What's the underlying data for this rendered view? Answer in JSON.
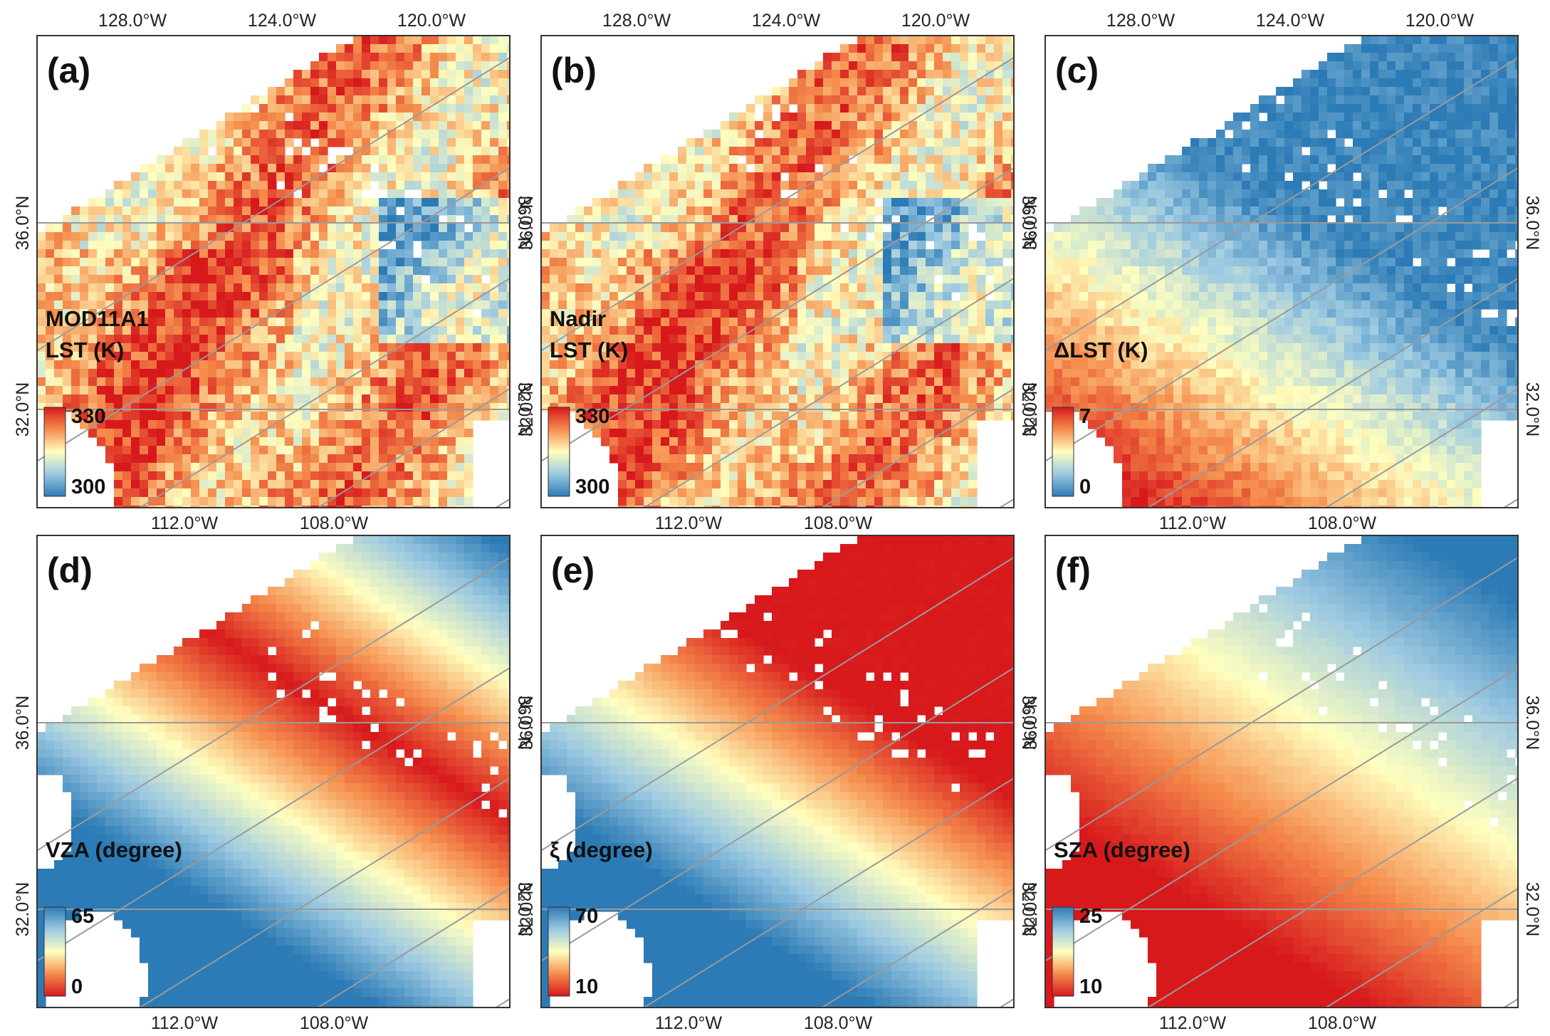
{
  "figure": {
    "top_lon_labels": [
      "128.0°W",
      "124.0°W",
      "120.0°W"
    ],
    "bottom_lon_labels": [
      "112.0°W",
      "108.0°W"
    ],
    "lat_labels": [
      "36.0°N",
      "32.0°N"
    ]
  },
  "colors": {
    "red": "#d7191c",
    "orange": "#f58d4d",
    "yellow": "#ffffbf",
    "lightblue": "#9cc9e1",
    "blue": "#2c7bb6",
    "grid": "#9a9a9a"
  },
  "panels": [
    {
      "id": "a",
      "tag": "(a)",
      "title_lines": [
        "MOD11A1",
        "LST (K)"
      ],
      "cb_top": "330",
      "cb_bottom": "300",
      "cb_top_color": "red",
      "pattern": "lst"
    },
    {
      "id": "b",
      "tag": "(b)",
      "title_lines": [
        "Nadir",
        "LST (K)"
      ],
      "cb_top": "330",
      "cb_bottom": "300",
      "cb_top_color": "red",
      "pattern": "lst"
    },
    {
      "id": "c",
      "tag": "(c)",
      "title_lines": [
        "ΔLST (K)"
      ],
      "cb_top": "7",
      "cb_bottom": "0",
      "cb_top_color": "red",
      "pattern": "dlst"
    },
    {
      "id": "d",
      "tag": "(d)",
      "title_lines": [
        "VZA (degree)"
      ],
      "cb_top": "65",
      "cb_bottom": "0",
      "cb_top_color": "blue",
      "pattern": "vza"
    },
    {
      "id": "e",
      "tag": "(e)",
      "title_lines": [
        "ξ (degree)"
      ],
      "cb_top": "70",
      "cb_bottom": "10",
      "cb_top_color": "blue",
      "pattern": "xi"
    },
    {
      "id": "f",
      "tag": "(f)",
      "title_lines": [
        "SZA (degree)"
      ],
      "cb_top": "25",
      "cb_bottom": "10",
      "cb_top_color": "blue",
      "pattern": "sza"
    }
  ]
}
